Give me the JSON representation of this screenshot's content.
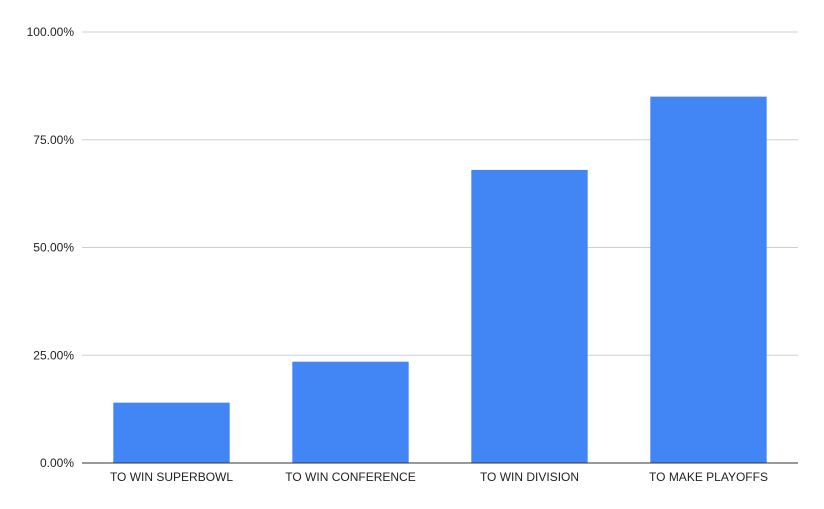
{
  "chart_data": {
    "type": "bar",
    "categories": [
      "TO WIN SUPERBOWL",
      "TO WIN CONFERENCE",
      "TO WIN DIVISION",
      "TO MAKE PLAYOFFS"
    ],
    "values": [
      0.14,
      0.235,
      0.68,
      0.85
    ],
    "ylim": [
      0,
      1
    ],
    "yticks": [
      0,
      0.25,
      0.5,
      0.75,
      1
    ],
    "ytick_labels": [
      "0.00%",
      "25.00%",
      "50.00%",
      "75.00%",
      "100.00%"
    ],
    "grid": true,
    "title": "",
    "xlabel": "",
    "ylabel": "",
    "colors": {
      "bar": "#4285f4",
      "grid": "#d0d0d0",
      "axis": "#333333"
    }
  }
}
